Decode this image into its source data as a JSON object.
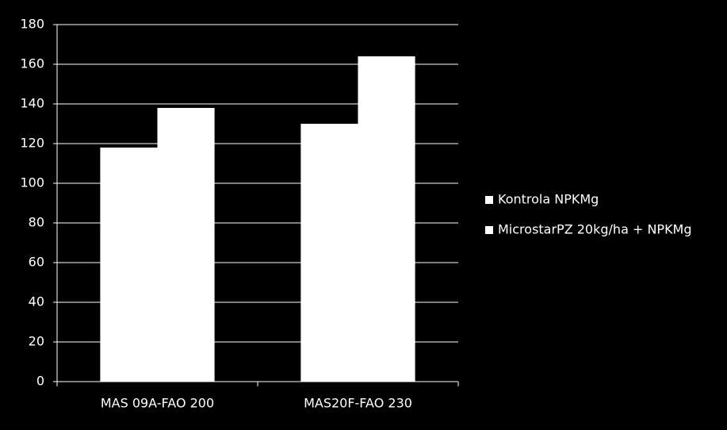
{
  "chart_data": {
    "type": "bar",
    "categories": [
      "MAS 09A-FAO 200",
      "MAS20F-FAO 230"
    ],
    "series": [
      {
        "name": "Kontrola NPKMg",
        "color": "#ffffff",
        "values": [
          118,
          130
        ]
      },
      {
        "name": "MicrostarPZ 20kg/ha + NPKMg",
        "color": "#ffffff",
        "values": [
          138,
          164
        ]
      }
    ],
    "ylim": [
      0,
      180
    ],
    "yticks": [
      0,
      20,
      40,
      60,
      80,
      100,
      120,
      140,
      160,
      180
    ],
    "grid": true,
    "legend": "right",
    "background": "#000000",
    "axis_color": "#ffffff"
  }
}
